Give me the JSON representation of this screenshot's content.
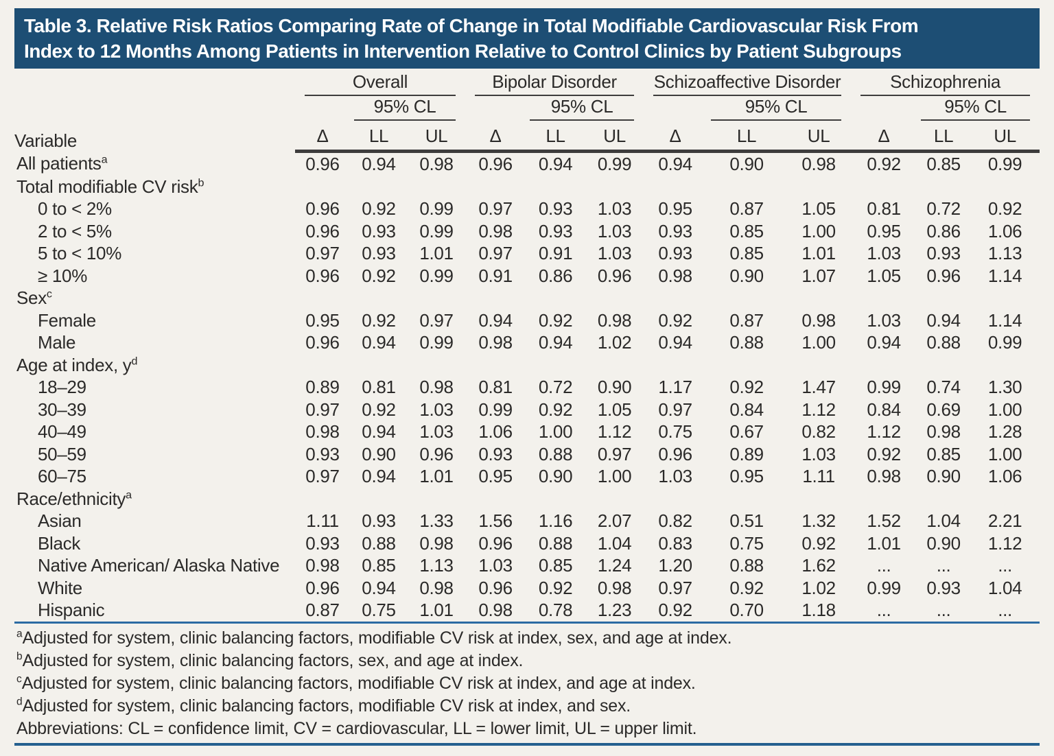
{
  "page": {
    "background": "#f3f1ec",
    "title_bar_color": "#1d4e74",
    "rule_blue_color": "#2b6ba3",
    "text_color": "#2b2a29"
  },
  "title": {
    "line1": "Table 3. Relative Risk Ratios Comparing Rate of Change in Total Modifiable Cardiovascular Risk From",
    "line2": "Index to 12 Months Among Patients in Intervention Relative to Control Clinics by Patient Subgroups"
  },
  "table": {
    "variable_header": "Variable",
    "ci_label": "95% CL",
    "subcolumns": [
      "Δ",
      "LL",
      "UL"
    ],
    "groups": [
      "Overall",
      "Bipolar Disorder",
      "Schizoaffective Disorder",
      "Schizophrenia"
    ],
    "rows": [
      {
        "type": "data",
        "label": "All patients",
        "sup": "a",
        "indent": false,
        "values": [
          "0.96",
          "0.94",
          "0.98",
          "0.96",
          "0.94",
          "0.99",
          "0.94",
          "0.90",
          "0.98",
          "0.92",
          "0.85",
          "0.99"
        ]
      },
      {
        "type": "section",
        "label": "Total modifiable CV risk",
        "sup": "b"
      },
      {
        "type": "data",
        "label": "0 to < 2%",
        "indent": true,
        "values": [
          "0.96",
          "0.92",
          "0.99",
          "0.97",
          "0.93",
          "1.03",
          "0.95",
          "0.87",
          "1.05",
          "0.81",
          "0.72",
          "0.92"
        ]
      },
      {
        "type": "data",
        "label": "2 to < 5%",
        "indent": true,
        "values": [
          "0.96",
          "0.93",
          "0.99",
          "0.98",
          "0.93",
          "1.03",
          "0.93",
          "0.85",
          "1.00",
          "0.95",
          "0.86",
          "1.06"
        ]
      },
      {
        "type": "data",
        "label": "5 to < 10%",
        "indent": true,
        "values": [
          "0.97",
          "0.93",
          "1.01",
          "0.97",
          "0.91",
          "1.03",
          "0.93",
          "0.85",
          "1.01",
          "1.03",
          "0.93",
          "1.13"
        ]
      },
      {
        "type": "data",
        "label": "≥ 10%",
        "indent": true,
        "values": [
          "0.96",
          "0.92",
          "0.99",
          "0.91",
          "0.86",
          "0.96",
          "0.98",
          "0.90",
          "1.07",
          "1.05",
          "0.96",
          "1.14"
        ]
      },
      {
        "type": "section",
        "label": "Sex",
        "sup": "c"
      },
      {
        "type": "data",
        "label": "Female",
        "indent": true,
        "values": [
          "0.95",
          "0.92",
          "0.97",
          "0.94",
          "0.92",
          "0.98",
          "0.92",
          "0.87",
          "0.98",
          "1.03",
          "0.94",
          "1.14"
        ]
      },
      {
        "type": "data",
        "label": "Male",
        "indent": true,
        "values": [
          "0.96",
          "0.94",
          "0.99",
          "0.98",
          "0.94",
          "1.02",
          "0.94",
          "0.88",
          "1.00",
          "0.94",
          "0.88",
          "0.99"
        ]
      },
      {
        "type": "section",
        "label": "Age at index, y",
        "sup": "d"
      },
      {
        "type": "data",
        "label": "18–29",
        "indent": true,
        "values": [
          "0.89",
          "0.81",
          "0.98",
          "0.81",
          "0.72",
          "0.90",
          "1.17",
          "0.92",
          "1.47",
          "0.99",
          "0.74",
          "1.30"
        ]
      },
      {
        "type": "data",
        "label": "30–39",
        "indent": true,
        "values": [
          "0.97",
          "0.92",
          "1.03",
          "0.99",
          "0.92",
          "1.05",
          "0.97",
          "0.84",
          "1.12",
          "0.84",
          "0.69",
          "1.00"
        ]
      },
      {
        "type": "data",
        "label": "40–49",
        "indent": true,
        "values": [
          "0.98",
          "0.94",
          "1.03",
          "1.06",
          "1.00",
          "1.12",
          "0.75",
          "0.67",
          "0.82",
          "1.12",
          "0.98",
          "1.28"
        ]
      },
      {
        "type": "data",
        "label": "50–59",
        "indent": true,
        "values": [
          "0.93",
          "0.90",
          "0.96",
          "0.93",
          "0.88",
          "0.97",
          "0.96",
          "0.89",
          "1.03",
          "0.92",
          "0.85",
          "1.00"
        ]
      },
      {
        "type": "data",
        "label": "60–75",
        "indent": true,
        "values": [
          "0.97",
          "0.94",
          "1.01",
          "0.95",
          "0.90",
          "1.00",
          "1.03",
          "0.95",
          "1.11",
          "0.98",
          "0.90",
          "1.06"
        ]
      },
      {
        "type": "section",
        "label": "Race/ethnicity",
        "sup": "a"
      },
      {
        "type": "data",
        "label": "Asian",
        "indent": true,
        "values": [
          "1.11",
          "0.93",
          "1.33",
          "1.56",
          "1.16",
          "2.07",
          "0.82",
          "0.51",
          "1.32",
          "1.52",
          "1.04",
          "2.21"
        ]
      },
      {
        "type": "data",
        "label": "Black",
        "indent": true,
        "values": [
          "0.93",
          "0.88",
          "0.98",
          "0.96",
          "0.88",
          "1.04",
          "0.83",
          "0.75",
          "0.92",
          "1.01",
          "0.90",
          "1.12"
        ]
      },
      {
        "type": "data",
        "label": "Native American/ Alaska Native",
        "indent": true,
        "values": [
          "0.98",
          "0.85",
          "1.13",
          "1.03",
          "0.85",
          "1.24",
          "1.20",
          "0.88",
          "1.62",
          "...",
          "...",
          "..."
        ]
      },
      {
        "type": "data",
        "label": "White",
        "indent": true,
        "values": [
          "0.96",
          "0.94",
          "0.98",
          "0.96",
          "0.92",
          "0.98",
          "0.97",
          "0.92",
          "1.02",
          "0.99",
          "0.93",
          "1.04"
        ]
      },
      {
        "type": "data",
        "label": "Hispanic",
        "indent": true,
        "values": [
          "0.87",
          "0.75",
          "1.01",
          "0.98",
          "0.78",
          "1.23",
          "0.92",
          "0.70",
          "1.18",
          "...",
          "...",
          "..."
        ]
      }
    ]
  },
  "footnotes": [
    {
      "sup": "a",
      "text": "Adjusted for system, clinic balancing factors, modifiable CV risk at index, sex, and age at index."
    },
    {
      "sup": "b",
      "text": "Adjusted for system, clinic balancing factors, sex, and age at index."
    },
    {
      "sup": "c",
      "text": "Adjusted for system, clinic balancing factors, modifiable CV risk at index, and age at index."
    },
    {
      "sup": "d",
      "text": "Adjusted for system, clinic balancing factors, modifiable CV risk at index, and sex."
    },
    {
      "sup": "",
      "text": "Abbreviations: CL = confidence limit, CV = cardiovascular, LL = lower limit, UL = upper limit."
    }
  ]
}
